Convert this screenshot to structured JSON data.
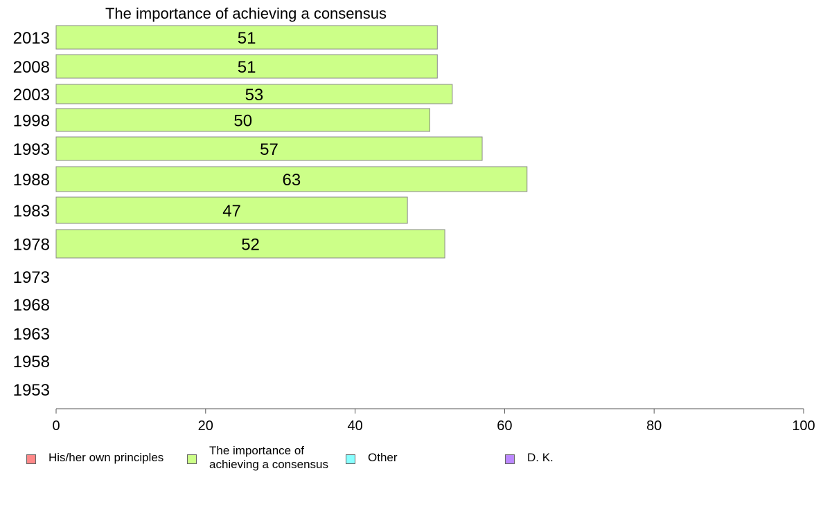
{
  "chart_data": {
    "type": "bar",
    "orientation": "horizontal",
    "title": "The importance of achieving a consensus",
    "categories": [
      "2013",
      "2008",
      "2003",
      "1998",
      "1993",
      "1988",
      "1983",
      "1978",
      "1973",
      "1968",
      "1963",
      "1958",
      "1953"
    ],
    "series": [
      {
        "name": "The importance of achieving a consensus",
        "values": [
          51,
          51,
          53,
          50,
          57,
          63,
          47,
          52,
          null,
          null,
          null,
          null,
          null
        ],
        "color": "#ccff88"
      }
    ],
    "xlim": [
      0,
      100
    ],
    "xticks": [
      "0",
      "20",
      "40",
      "60",
      "80",
      "100"
    ],
    "grid": false,
    "legend_position": "bottom"
  },
  "legend": {
    "items": [
      {
        "label": "His/her own principles",
        "color": "#ff8888"
      },
      {
        "label": "The importance of\nachieving a consensus",
        "color": "#ccff88"
      },
      {
        "label": "Other",
        "color": "#88ffff"
      },
      {
        "label": "D. K.",
        "color": "#bb88ff"
      }
    ]
  }
}
